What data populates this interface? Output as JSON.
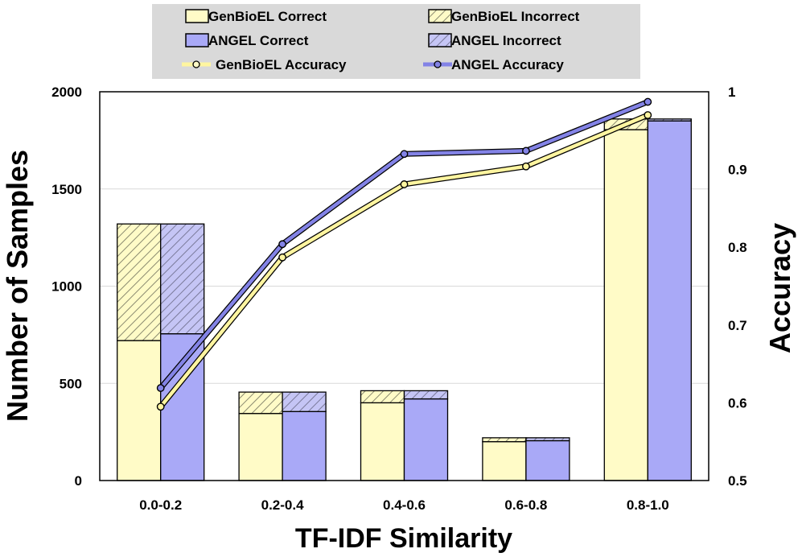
{
  "chart_data": {
    "type": "bar",
    "stacked": true,
    "secondary_type": "line",
    "categories": [
      "0.0-0.2",
      "0.2-0.4",
      "0.4-0.6",
      "0.6-0.8",
      "0.8-1.0"
    ],
    "series": [
      {
        "name": "GenBioEL Correct",
        "group": "GenBioEL",
        "kind": "correct",
        "color": "#fffbc7",
        "values": [
          720,
          345,
          400,
          200,
          1805
        ]
      },
      {
        "name": "GenBioEL Incorrect",
        "group": "GenBioEL",
        "kind": "incorrect",
        "color": "#fffbc7",
        "values": [
          600,
          110,
          62,
          20,
          55
        ]
      },
      {
        "name": "ANGEL Correct",
        "group": "ANGEL",
        "kind": "correct",
        "color": "#a9a9f7",
        "values": [
          755,
          355,
          420,
          205,
          1850
        ]
      },
      {
        "name": "ANGEL Incorrect",
        "group": "ANGEL",
        "kind": "incorrect",
        "color": "#a9a9f7",
        "values": [
          565,
          100,
          42,
          15,
          10
        ]
      }
    ],
    "lines": [
      {
        "name": "GenBioEL Accuracy",
        "color": "#fff5a0",
        "values": [
          0.595,
          0.787,
          0.881,
          0.904,
          0.97
        ]
      },
      {
        "name": "ANGEL Accuracy",
        "color": "#8383e6",
        "values": [
          0.619,
          0.804,
          0.92,
          0.924,
          0.987
        ]
      }
    ],
    "xlabel": "TF-IDF Similarity",
    "ylabel": "Number of Samples",
    "y2label": "Accuracy",
    "ylim": [
      0,
      2000
    ],
    "y2lim": [
      0.5,
      1.0
    ],
    "yticks": [
      "0",
      "500",
      "1000",
      "1500",
      "2000"
    ],
    "y2ticks": [
      "0.5",
      "0.6",
      "0.7",
      "0.8",
      "0.9",
      "1"
    ],
    "grid": true,
    "legend_position": "top"
  }
}
